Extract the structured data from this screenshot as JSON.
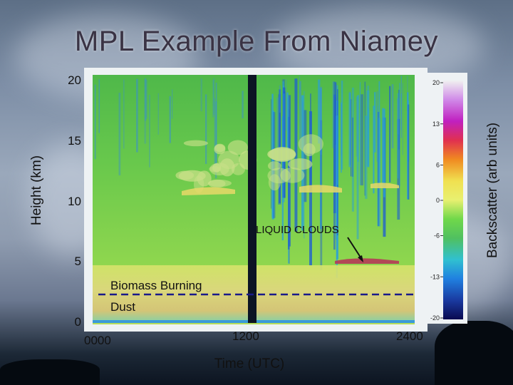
{
  "title": "MPL Example From Niamey",
  "chart_data": {
    "type": "heatmap",
    "title": "MPL Example From Niamey",
    "xlabel": "Time (UTC)",
    "ylabel": "Height (km)",
    "colorbar_label": "Backscatter (arb units)",
    "x_ticks": [
      "0000",
      "1200",
      "2400"
    ],
    "y_ticks": [
      "0",
      "5",
      "10",
      "15",
      "20"
    ],
    "ylim": [
      0,
      20
    ],
    "colorbar_ticks": [
      "20",
      "13",
      "6",
      "0",
      "-6",
      "-13",
      "-20"
    ],
    "colorbar_range": [
      -20,
      20
    ],
    "annotations": {
      "liquid_clouds": "LIQUID CLOUDS",
      "biomass_burning": "Biomass Burning",
      "dust": "Dust"
    },
    "colors": {
      "background_green": "#6fcf4a",
      "aerosol_yellow": "#d8d870",
      "cloud_blue": "#1f5fd0",
      "dashed_line": "#1a1a8a"
    }
  }
}
